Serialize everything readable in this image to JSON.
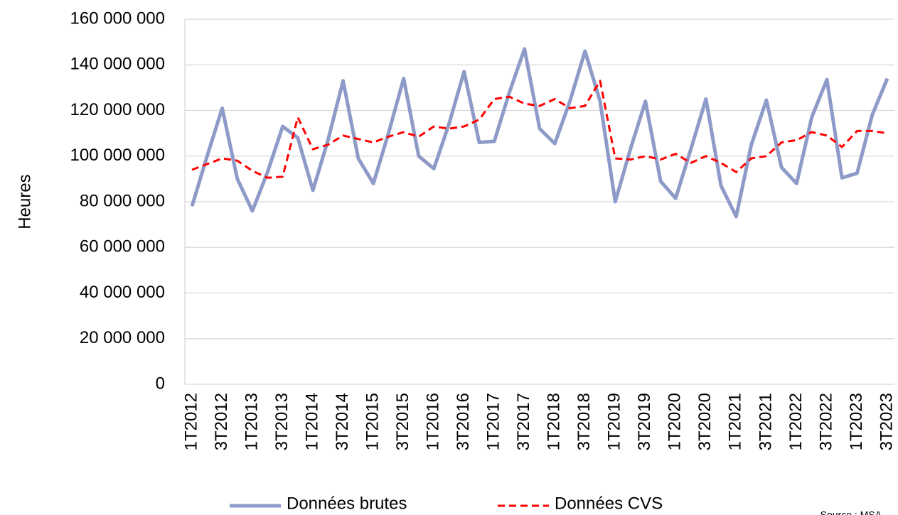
{
  "chart_data": {
    "type": "line",
    "y_label": "Heures",
    "categories": [
      "1T2012",
      null,
      "3T2012",
      null,
      "1T2013",
      null,
      "3T2013",
      null,
      "1T2014",
      null,
      "3T2014",
      null,
      "1T2015",
      null,
      "3T2015",
      null,
      "1T2016",
      null,
      "3T2016",
      null,
      "1T2017",
      null,
      "3T2017",
      null,
      "1T2018",
      null,
      "3T2018",
      null,
      "1T2019",
      null,
      "3T2019",
      null,
      "1T2020",
      null,
      "3T2020",
      null,
      "1T2021",
      null,
      "3T2021",
      null,
      "1T2022",
      null,
      "3T2022",
      null,
      "1T2023",
      null,
      "3T2023"
    ],
    "series": [
      {
        "name": "Données brutes",
        "color": "#8e9ac8",
        "dash": "solid",
        "values": [
          78000000,
          100000000,
          121000000,
          90000000,
          76000000,
          93000000,
          113000000,
          108000000,
          85000000,
          107000000,
          133000000,
          99000000,
          88000000,
          110000000,
          134000000,
          100000000,
          94500000,
          114000000,
          137000000,
          106000000,
          106500000,
          128000000,
          147000000,
          112000000,
          105500000,
          124000000,
          146000000,
          124000000,
          80000000,
          103000000,
          124000000,
          89000000,
          81500000,
          103000000,
          125000000,
          87000000,
          73500000,
          105000000,
          124500000,
          95000000,
          88000000,
          117000000,
          133500000,
          90500000,
          92500000,
          118000000,
          134000000
        ]
      },
      {
        "name": "Données CVS",
        "color": "#ff0000",
        "dash": "dashed",
        "values": [
          94000000,
          96500000,
          99000000,
          98000000,
          93500000,
          90500000,
          91000000,
          117000000,
          103000000,
          105000000,
          109000000,
          107500000,
          106000000,
          108500000,
          110500000,
          108500000,
          113000000,
          112000000,
          113000000,
          116000000,
          125000000,
          126000000,
          123000000,
          122000000,
          125000000,
          121000000,
          122000000,
          133000000,
          99000000,
          98500000,
          100000000,
          98500000,
          101000000,
          97000000,
          100000000,
          97000000,
          93000000,
          99000000,
          100000000,
          106000000,
          107000000,
          110500000,
          109000000,
          104000000,
          111000000,
          111000000,
          110000000
        ]
      }
    ],
    "ylim": [
      0,
      160000000
    ],
    "yticks": [
      0,
      {
        "value": 20000000,
        "label": "20 000 000"
      },
      {
        "value": 40000000,
        "label": "40 000 000"
      },
      {
        "value": 60000000,
        "label": "60 000 000"
      },
      {
        "value": 80000000,
        "label": "80 000 000"
      },
      {
        "value": 100000000,
        "label": "100 000 000"
      },
      {
        "value": 120000000,
        "label": "120 000 000"
      },
      {
        "value": 140000000,
        "label": "140 000 000"
      },
      {
        "value": 160000000,
        "label": "160 000 000"
      }
    ],
    "grid": true,
    "legend": "bottom",
    "source": "Source : MSA"
  }
}
